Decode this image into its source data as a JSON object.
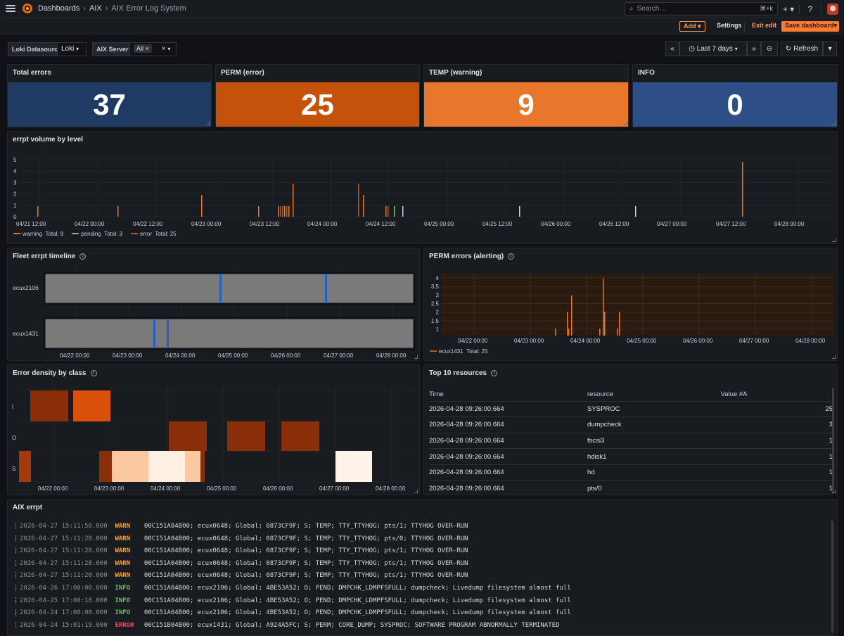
{
  "topbar": {
    "crumbs": [
      "Dashboards",
      "AIX",
      "AIX Error Log System"
    ],
    "search_placeholder": "Search...",
    "search_shortcut": "⌘+k",
    "plus_label": "+"
  },
  "actions": {
    "add": "Add",
    "settings": "Settings",
    "exit_edit": "Exit edit",
    "save": "Save dashboard"
  },
  "variables": {
    "loki_label": "Loki Datasource",
    "loki_value": "Loki",
    "server_label": "AIX Server",
    "server_chip": "All"
  },
  "time": {
    "range": "Last 7 days",
    "refresh": "Refresh"
  },
  "stats": [
    {
      "title": "Total errors",
      "value": "37",
      "color": "#1f3b63"
    },
    {
      "title": "PERM (error)",
      "value": "25",
      "color": "#c4520a"
    },
    {
      "title": "TEMP (warning)",
      "value": "9",
      "color": "#e8772b"
    },
    {
      "title": "INFO",
      "value": "0",
      "color": "#2d4e87"
    }
  ],
  "volume": {
    "title": "errpt volume by level",
    "yticks": [
      "5",
      "4",
      "3",
      "2",
      "1",
      "0"
    ],
    "xticks": [
      "04/21 12:00",
      "04/22 00:00",
      "04/22 12:00",
      "04/23 00:00",
      "04/23 12:00",
      "04/24 00:00",
      "04/24 12:00",
      "04/25 00:00",
      "04/25 12:00",
      "04/26 00:00",
      "04/26 12:00",
      "04/27 00:00",
      "04/27 12:00",
      "04/28 00:00"
    ],
    "legend": [
      {
        "name": "warning",
        "total": "Total: 9",
        "color": "#e8772b"
      },
      {
        "name": "pending",
        "total": "Total: 3",
        "color": "#73bf69"
      },
      {
        "name": "error",
        "total": "Total: 25",
        "color": "#c4520a"
      }
    ]
  },
  "timeline": {
    "title": "Fleet errpt timeline",
    "hosts": [
      "ecux2106",
      "ecux1431"
    ],
    "xticks": [
      "04/22 00:00",
      "04/23 00:00",
      "04/24 00:00",
      "04/25 00:00",
      "04/26 00:00",
      "04/27 00:00",
      "04/28 00:00"
    ]
  },
  "perm": {
    "title": "PERM errors (alerting)",
    "yticks": [
      "4",
      "3.5",
      "3",
      "2.5",
      "2",
      "1.5",
      "1"
    ],
    "xticks": [
      "04/22 00:00",
      "04/23 00:00",
      "04/24 00:00",
      "04/25 00:00",
      "04/26 00:00",
      "04/27 00:00",
      "04/28 00:00"
    ],
    "legend_name": "ecux1431",
    "legend_total": "Total: 25"
  },
  "density": {
    "title": "Error density by class",
    "ylabels": [
      "I",
      "O",
      "S"
    ],
    "xticks": [
      "04/22 00:00",
      "04/23 00:00",
      "04/24 00:00",
      "04/25 00:00",
      "04/26 00:00",
      "04/27 00:00",
      "04/28 00:00"
    ]
  },
  "top10": {
    "title": "Top 10 resources",
    "columns": [
      "Time",
      "resource",
      "Value #A"
    ],
    "rows": [
      [
        "2026-04-28 09:26:00.664",
        "SYSPROC",
        "25"
      ],
      [
        "2026-04-28 09:26:00.664",
        "dumpcheck",
        "3"
      ],
      [
        "2026-04-28 09:26:00.664",
        "fscsi3",
        "1"
      ],
      [
        "2026-04-28 09:26:00.664",
        "hdisk1",
        "1"
      ],
      [
        "2026-04-28 09:26:00.664",
        "hd",
        "1"
      ],
      [
        "2026-04-28 09:26:00.664",
        "pts/0",
        "1"
      ]
    ]
  },
  "logs": {
    "title": "AIX errpt",
    "rows": [
      {
        "ts": "2026-04-27 15:11:50.000",
        "level": "WARN",
        "color": "#f4a340",
        "msg": "00C151A04B00; ecux0648; Global; 0873CF9F; S; TEMP; TTY_TTYHOG; pts/1; TTYHOG OVER-RUN"
      },
      {
        "ts": "2026-04-27 15:11:28.000",
        "level": "WARN",
        "color": "#f4a340",
        "msg": "00C151A04B00; ecux0648; Global; 0873CF9F; S; TEMP; TTY_TTYHOG; pts/0; TTYHOG OVER-RUN"
      },
      {
        "ts": "2026-04-27 15:11:28.000",
        "level": "WARN",
        "color": "#f4a340",
        "msg": "00C151A04B00; ecux0648; Global; 0873CF9F; S; TEMP; TTY_TTYHOG; pts/1; TTYHOG OVER-RUN"
      },
      {
        "ts": "2026-04-27 15:11:28.000",
        "level": "WARN",
        "color": "#f4a340",
        "msg": "00C151A04B00; ecux0648; Global; 0873CF9F; S; TEMP; TTY_TTYHOG; pts/1; TTYHOG OVER-RUN"
      },
      {
        "ts": "2026-04-27 15:11:20.000",
        "level": "WARN",
        "color": "#f4a340",
        "msg": "00C151A04B00; ecux0648; Global; 0873CF9F; S; TEMP; TTY_TTYHOG; pts/1; TTYHOG OVER-RUN"
      },
      {
        "ts": "2026-04-26 17:00:00.000",
        "level": "INFO",
        "color": "#73bf69",
        "msg": "00C151A04B00; ecux2106; Global; 4BE53A52; O; PEND; DMPCHK_LDMPFSFULL; dumpcheck; Livedump filesystem almost full"
      },
      {
        "ts": "2026-04-25 17:00:18.000",
        "level": "INFO",
        "color": "#73bf69",
        "msg": "00C151A04B00; ecux2106; Global; 4BE53A52; O; PEND; DMPCHK_LDMPFSFULL; dumpcheck; Livedump filesystem almost full"
      },
      {
        "ts": "2026-04-24 17:00:00.000",
        "level": "INFO",
        "color": "#73bf69",
        "msg": "00C151A04B00; ecux2106; Global; 4BE53A52; O; PEND; DMPCHK_LDMPFSFULL; dumpcheck; Livedump filesystem almost full"
      },
      {
        "ts": "2026-04-24 15:01:19.000",
        "level": "ERROR",
        "color": "#f2495c",
        "msg": "00C151B04B00; ecux1431; Global; A924A5FC; S; PERM; CORE_DUMP; SYSPROC; SOFTWARE PROGRAM ABNORMALLY TERMINATED"
      }
    ]
  }
}
